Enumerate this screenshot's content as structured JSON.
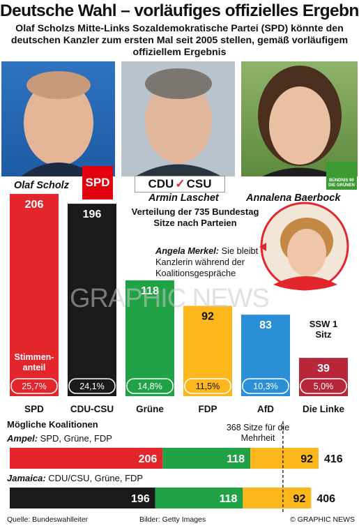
{
  "title": "Deutsche Wahl – vorläufiges offizielles Ergebnis",
  "subtitle": "Olaf Scholzs Mitte-Links Sozaldemokratische Partei (SPD) könnte den deutschen Kanzler zum ersten Mal seit 2005 stellen, gemäß vorläufigem offiziellem Ergebnis",
  "candidates": {
    "scholz": "Olaf Scholz",
    "laschet": "Armin Laschet",
    "baerbock": "Annalena Baerbock"
  },
  "logos": {
    "spd": "SPD",
    "cdu": "CDU",
    "csu": "CSU",
    "green": "BÜNDNIS 90 DIE GRÜNEN"
  },
  "seats_note": "Verteilung der 735 Bundestag Sitze nach Parteien",
  "merkel": {
    "name": "Angela Merkel:",
    "text": " Sie bleibt Kanzlerin während der Koalitionsgespräche"
  },
  "ssw": "SSW 1 Sitz",
  "stimmen_label": "Stimmen-anteil",
  "watermark": "GRAPHIC NEWS",
  "chart_data": {
    "type": "bar",
    "categories": [
      "SPD",
      "CDU-CSU",
      "Grüne",
      "FDP",
      "AfD",
      "Die Linke"
    ],
    "values": [
      206,
      196,
      118,
      92,
      83,
      39
    ],
    "vote_share": [
      "25,7%",
      "24,1%",
      "14,8%",
      "11,5%",
      "10,3%",
      "5,0%"
    ],
    "colors": [
      "#e3262c",
      "#1a1a1a",
      "#22a246",
      "#fbb71b",
      "#2a8fd6",
      "#b8263a"
    ],
    "ylim": [
      0,
      206
    ]
  },
  "coalitions": {
    "heading": "Mögliche Koalitionen",
    "majority": "368 Sitze für die Mehrheit",
    "majority_value": 368,
    "items": [
      {
        "name": "Ampel:",
        "parties": " SPD, Grüne, FDP",
        "segments": [
          206,
          118,
          92
        ],
        "colors": [
          "#e3262c",
          "#22a246",
          "#fbb71b"
        ],
        "total": "416"
      },
      {
        "name": "Jamaica:",
        "parties": " CDU/CSU, Grüne, FDP",
        "segments": [
          196,
          118,
          92
        ],
        "colors": [
          "#1a1a1a",
          "#22a246",
          "#fbb71b"
        ],
        "total": "406"
      }
    ]
  },
  "footer": {
    "source": "Quelle: Bundeswahlleiter",
    "images": "Bilder: Getty Images",
    "credit": "© GRAPHIC NEWS"
  }
}
